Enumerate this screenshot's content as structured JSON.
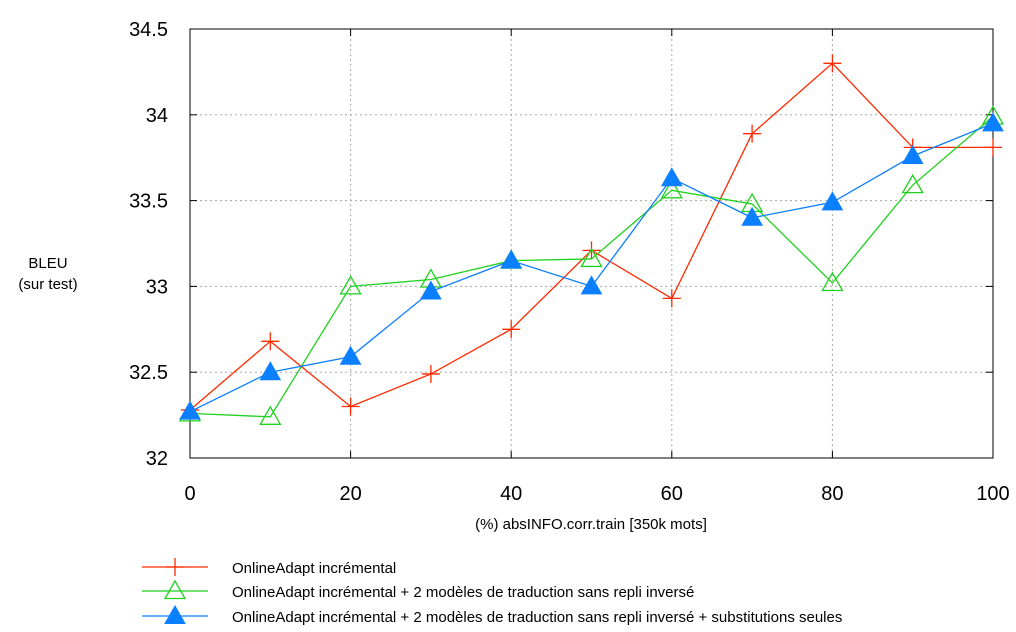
{
  "chart_data": {
    "type": "line",
    "title": "",
    "xlabel": "(%) absINFO.corr.train [350k mots]",
    "ylabel_line1": "BLEU",
    "ylabel_line2": "(sur test)",
    "xlim": [
      0,
      100
    ],
    "ylim": [
      32,
      34.5
    ],
    "xticks": [
      "0",
      "20",
      "40",
      "60",
      "80",
      "100"
    ],
    "yticks": [
      "32",
      "32.5",
      "33",
      "33.5",
      "34",
      "34.5"
    ],
    "grid": true,
    "legend_position": "bottom-left, below plot",
    "x": [
      0,
      10,
      20,
      30,
      40,
      50,
      60,
      70,
      80,
      90,
      100
    ],
    "series": [
      {
        "name": "OnlineAdapt incrémental",
        "color": "#ff2a00",
        "marker": "plus",
        "values": [
          32.28,
          32.68,
          32.3,
          32.49,
          32.75,
          33.21,
          32.93,
          33.89,
          34.3,
          33.81,
          33.81
        ]
      },
      {
        "name": "OnlineAdapt incrémental + 2 modèles de traduction sans repli inversé",
        "color": "#1ed21e",
        "marker": "open-triangle",
        "values": [
          32.26,
          32.24,
          33.0,
          33.04,
          33.15,
          33.16,
          33.56,
          33.48,
          33.02,
          33.59,
          33.99
        ]
      },
      {
        "name": "OnlineAdapt incrémental + 2 modèles de traduction sans repli inversé + substitutions seules",
        "color": "#0a7fff",
        "marker": "filled-triangle",
        "values": [
          32.27,
          32.5,
          32.59,
          32.97,
          33.15,
          33.0,
          33.63,
          33.4,
          33.49,
          33.76,
          33.95
        ]
      }
    ]
  }
}
